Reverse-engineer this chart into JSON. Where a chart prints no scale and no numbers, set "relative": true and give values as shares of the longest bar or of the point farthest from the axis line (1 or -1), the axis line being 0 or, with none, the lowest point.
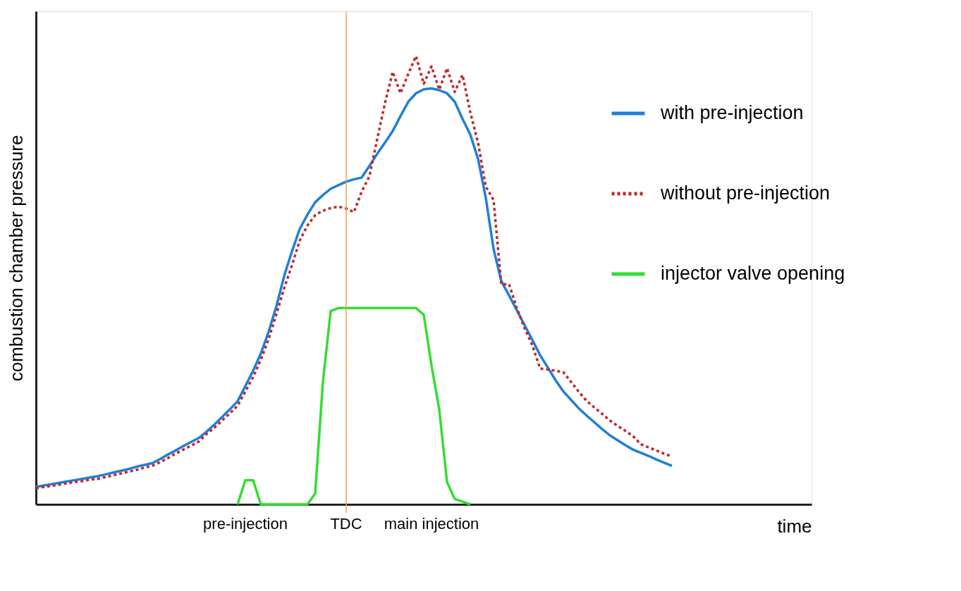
{
  "chart_data": {
    "type": "line",
    "relative": true,
    "xlabel": "time",
    "ylabel": "combustion chamber pressure",
    "legend": "right",
    "grid": false,
    "categories": [
      null,
      null,
      null,
      null,
      null,
      null,
      null,
      null,
      null,
      null,
      null,
      null,
      null,
      null,
      null,
      null,
      null,
      null,
      null,
      null,
      null,
      null,
      null,
      null,
      null,
      null,
      null,
      "pre-injection",
      null,
      null,
      null,
      null,
      null,
      null,
      null,
      null,
      null,
      null,
      null,
      null,
      "TDC",
      null,
      null,
      null,
      null,
      null,
      null,
      null,
      null,
      null,
      null,
      "main injection",
      null,
      null,
      null,
      null,
      null,
      null,
      null,
      null,
      null,
      null,
      null,
      null,
      null,
      null,
      null,
      null,
      null,
      null,
      null,
      null,
      null,
      null,
      null,
      null,
      null,
      null,
      null,
      null,
      null,
      null,
      null,
      null,
      null,
      null,
      null,
      null,
      null,
      null,
      null,
      null,
      null,
      null,
      null,
      null,
      null,
      null,
      null,
      null,
      null
    ],
    "series": [
      {
        "name": "with pre-injection",
        "color": "#1f7fd8",
        "line_style": "solid",
        "values": [
          0.039,
          0.042,
          0.045,
          0.048,
          0.051,
          0.054,
          0.057,
          0.06,
          0.063,
          0.067,
          0.071,
          0.075,
          0.079,
          0.084,
          0.088,
          0.092,
          0.101,
          0.111,
          0.12,
          0.13,
          0.139,
          0.148,
          0.162,
          0.178,
          0.195,
          0.212,
          0.23,
          0.264,
          0.298,
          0.337,
          0.385,
          0.442,
          0.509,
          0.564,
          0.614,
          0.646,
          0.674,
          0.69,
          0.704,
          0.712,
          0.72,
          0.725,
          0.729,
          0.755,
          0.782,
          0.807,
          0.833,
          0.866,
          0.898,
          0.917,
          0.926,
          0.928,
          0.924,
          0.917,
          0.898,
          0.86,
          0.825,
          0.771,
          0.684,
          0.57,
          0.498,
          0.466,
          0.433,
          0.4,
          0.367,
          0.333,
          0.305,
          0.277,
          0.252,
          0.233,
          0.214,
          0.198,
          0.183,
          0.168,
          0.154,
          0.143,
          0.132,
          0.122,
          0.115,
          0.108,
          0.1,
          0.093,
          0.086,
          null,
          null,
          null,
          null,
          null,
          null,
          null,
          null,
          null,
          null,
          null,
          null,
          null,
          null,
          null,
          null,
          null,
          null
        ]
      },
      {
        "name": "without pre-injection",
        "color": "#c0282a",
        "line_style": "dotted",
        "values": [
          0.036,
          0.039,
          0.041,
          0.044,
          0.047,
          0.05,
          0.052,
          0.055,
          0.057,
          0.061,
          0.065,
          0.069,
          0.073,
          0.077,
          0.082,
          0.086,
          0.094,
          0.103,
          0.113,
          0.122,
          0.131,
          0.14,
          0.157,
          0.171,
          0.187,
          0.203,
          0.22,
          0.252,
          0.284,
          0.323,
          0.369,
          0.424,
          0.482,
          0.533,
          0.588,
          0.622,
          0.645,
          0.655,
          0.661,
          0.664,
          0.66,
          0.652,
          0.698,
          0.732,
          0.815,
          0.895,
          0.965,
          0.917,
          0.96,
          1,
          0.938,
          0.977,
          0.925,
          0.973,
          0.92,
          0.958,
          0.875,
          0.807,
          0.709,
          0.679,
          0.491,
          0.491,
          0.438,
          0.393,
          0.355,
          0.303,
          0.301,
          0.298,
          0.295,
          0.273,
          0.251,
          0.231,
          0.216,
          0.202,
          0.187,
          0.175,
          0.164,
          0.152,
          0.134,
          0.127,
          0.12,
          0.113,
          0.107,
          null,
          null,
          null,
          null,
          null,
          null,
          null,
          null,
          null,
          null,
          null,
          null,
          null,
          null,
          null,
          null,
          null,
          null
        ]
      },
      {
        "name": "injector valve opening",
        "color": "#33dd33",
        "line_style": "solid",
        "values": [
          null,
          null,
          null,
          null,
          null,
          null,
          null,
          null,
          null,
          null,
          null,
          null,
          null,
          null,
          null,
          null,
          null,
          null,
          null,
          null,
          null,
          null,
          null,
          null,
          null,
          null,
          0,
          0.054,
          0.054,
          0,
          0,
          0,
          0,
          0,
          0,
          0,
          0.024,
          0.273,
          0.431,
          0.438,
          0.438,
          0.438,
          0.438,
          0.438,
          0.438,
          0.438,
          0.438,
          0.438,
          0.438,
          0.438,
          0.423,
          0.31,
          0.212,
          0.05,
          0.012,
          0.006,
          0,
          null,
          null,
          null,
          null,
          null,
          null,
          null,
          null,
          null,
          null,
          null,
          null,
          null,
          null,
          null,
          null,
          null,
          null,
          null,
          null,
          null,
          null,
          null,
          null,
          null,
          null,
          null,
          null,
          null,
          null,
          null,
          null,
          null,
          null,
          null,
          null,
          null,
          null,
          null,
          null,
          null,
          null,
          null,
          null
        ]
      }
    ],
    "ref_lines": [
      {
        "axis": "x",
        "value": "TDC",
        "color": "#f0a050"
      }
    ]
  }
}
